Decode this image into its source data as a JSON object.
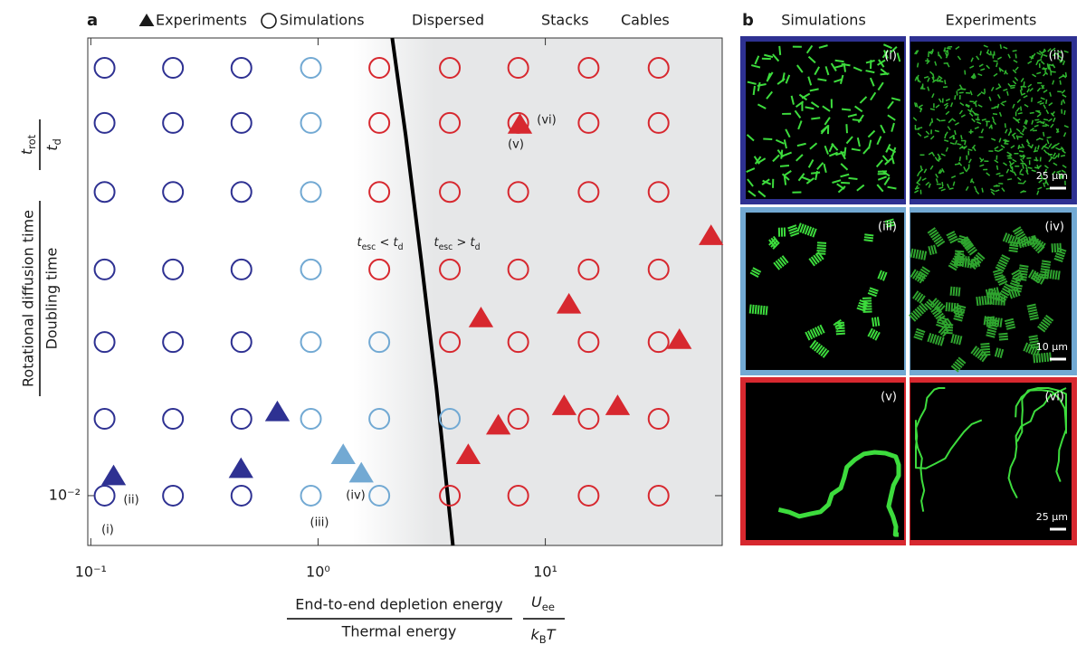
{
  "chart_data": {
    "type": "scatter",
    "panel_label": "a",
    "log_x": true,
    "log_y": true,
    "xlim": [
      0.097,
      60
    ],
    "ylim": [
      0.00638,
      0.622
    ],
    "xticks": [
      {
        "value": 0.1,
        "label": "10⁻¹"
      },
      {
        "value": 1,
        "label": "10⁰"
      },
      {
        "value": 10,
        "label": "10¹"
      }
    ],
    "yticks": [
      {
        "value": 0.01,
        "label": "10⁻²"
      }
    ],
    "marker_legend": {
      "experiments": "Experiments",
      "simulations": "Simulations"
    },
    "series": [
      {
        "name": "Dispersed",
        "color": "#2e3192",
        "simulations": {
          "x": [
            0.115,
            0.115,
            0.115,
            0.115,
            0.115,
            0.115,
            0.115,
            0.23,
            0.23,
            0.23,
            0.23,
            0.23,
            0.23,
            0.23,
            0.46,
            0.46,
            0.46,
            0.46,
            0.46,
            0.46,
            0.46
          ],
          "y": [
            0.475,
            0.289,
            0.155,
            0.077,
            0.04,
            0.02,
            0.01,
            0.475,
            0.289,
            0.155,
            0.077,
            0.04,
            0.02,
            0.01,
            0.475,
            0.289,
            0.155,
            0.077,
            0.04,
            0.02,
            0.01
          ]
        },
        "experiments": {
          "x": [
            0.126,
            0.458,
            0.662
          ],
          "y": [
            0.0119,
            0.0127,
            0.0212
          ]
        }
      },
      {
        "name": "Stacks",
        "color": "#72a9d3",
        "simulations": {
          "x": [
            0.93,
            0.93,
            0.93,
            0.93,
            0.93,
            0.93,
            0.93,
            1.86,
            1.86,
            1.86,
            3.8
          ],
          "y": [
            0.475,
            0.289,
            0.155,
            0.077,
            0.04,
            0.02,
            0.01,
            0.04,
            0.02,
            0.01,
            0.02
          ]
        },
        "experiments": {
          "x": [
            1.29,
            1.55
          ],
          "y": [
            0.0144,
            0.0122
          ]
        }
      },
      {
        "name": "Cables",
        "color": "#d7282f",
        "simulations": {
          "x": [
            1.86,
            1.86,
            1.86,
            1.86,
            3.8,
            3.8,
            3.8,
            3.8,
            3.8,
            3.8,
            7.6,
            7.6,
            7.6,
            7.6,
            7.6,
            7.6,
            7.6,
            15.5,
            15.5,
            15.5,
            15.5,
            15.5,
            15.5,
            15.5,
            31.5,
            31.5,
            31.5,
            31.5,
            31.5,
            31.5,
            31.5
          ],
          "y": [
            0.475,
            0.289,
            0.155,
            0.077,
            0.475,
            0.289,
            0.155,
            0.077,
            0.04,
            0.01,
            0.475,
            0.289,
            0.155,
            0.077,
            0.04,
            0.02,
            0.01,
            0.475,
            0.289,
            0.155,
            0.077,
            0.04,
            0.02,
            0.01,
            0.475,
            0.289,
            0.155,
            0.077,
            0.04,
            0.02,
            0.01
          ]
        },
        "experiments": {
          "x": [
            7.73,
            53.6,
            5.21,
            12.7,
            38.9,
            12.1,
            20.8,
            6.21,
            4.58
          ],
          "y": [
            0.284,
            0.104,
            0.0495,
            0.056,
            0.0407,
            0.0224,
            0.0224,
            0.0188,
            0.0144
          ]
        }
      }
    ],
    "boundary": {
      "x": [
        2.12,
        2.43,
        2.85,
        3.32,
        3.92
      ],
      "y": [
        0.622,
        0.258,
        0.0822,
        0.0262,
        0.00638
      ]
    },
    "regime_labels": [
      [
        "t",
        "esc",
        " < t",
        "d"
      ],
      [
        "t",
        "esc",
        " > t",
        "d"
      ]
    ],
    "annotations": [
      "(i)",
      "(ii)",
      "(iii)",
      "(iv)",
      "(v)",
      "(vi)"
    ],
    "ylabel": {
      "numerator": "Rotational diffusion time",
      "denominator": "Doubling time",
      "symbol_numerator": [
        "t",
        "rot"
      ],
      "symbol_denominator": [
        "t",
        "d"
      ]
    },
    "xlabel": {
      "numerator": "End-to-end depletion energy",
      "denominator": "Thermal energy",
      "symbol_numerator": [
        "U",
        "ee"
      ],
      "symbol_denominator": [
        "k",
        "B",
        "T"
      ]
    }
  },
  "images": {
    "panel_label": "b",
    "columns": [
      "Simulations",
      "Experiments"
    ],
    "rows": [
      {
        "color": "#2e3192",
        "panels": [
          {
            "label": "(i)"
          },
          {
            "label": "(ii)",
            "scale_bar": "25 μm"
          }
        ]
      },
      {
        "color": "#72a9d3",
        "panels": [
          {
            "label": "(iii)"
          },
          {
            "label": "(iv)",
            "scale_bar": "10 μm"
          }
        ]
      },
      {
        "color": "#d7282f",
        "panels": [
          {
            "label": "(v)"
          },
          {
            "label": "(vi)",
            "scale_bar": "25 μm"
          }
        ]
      }
    ]
  }
}
